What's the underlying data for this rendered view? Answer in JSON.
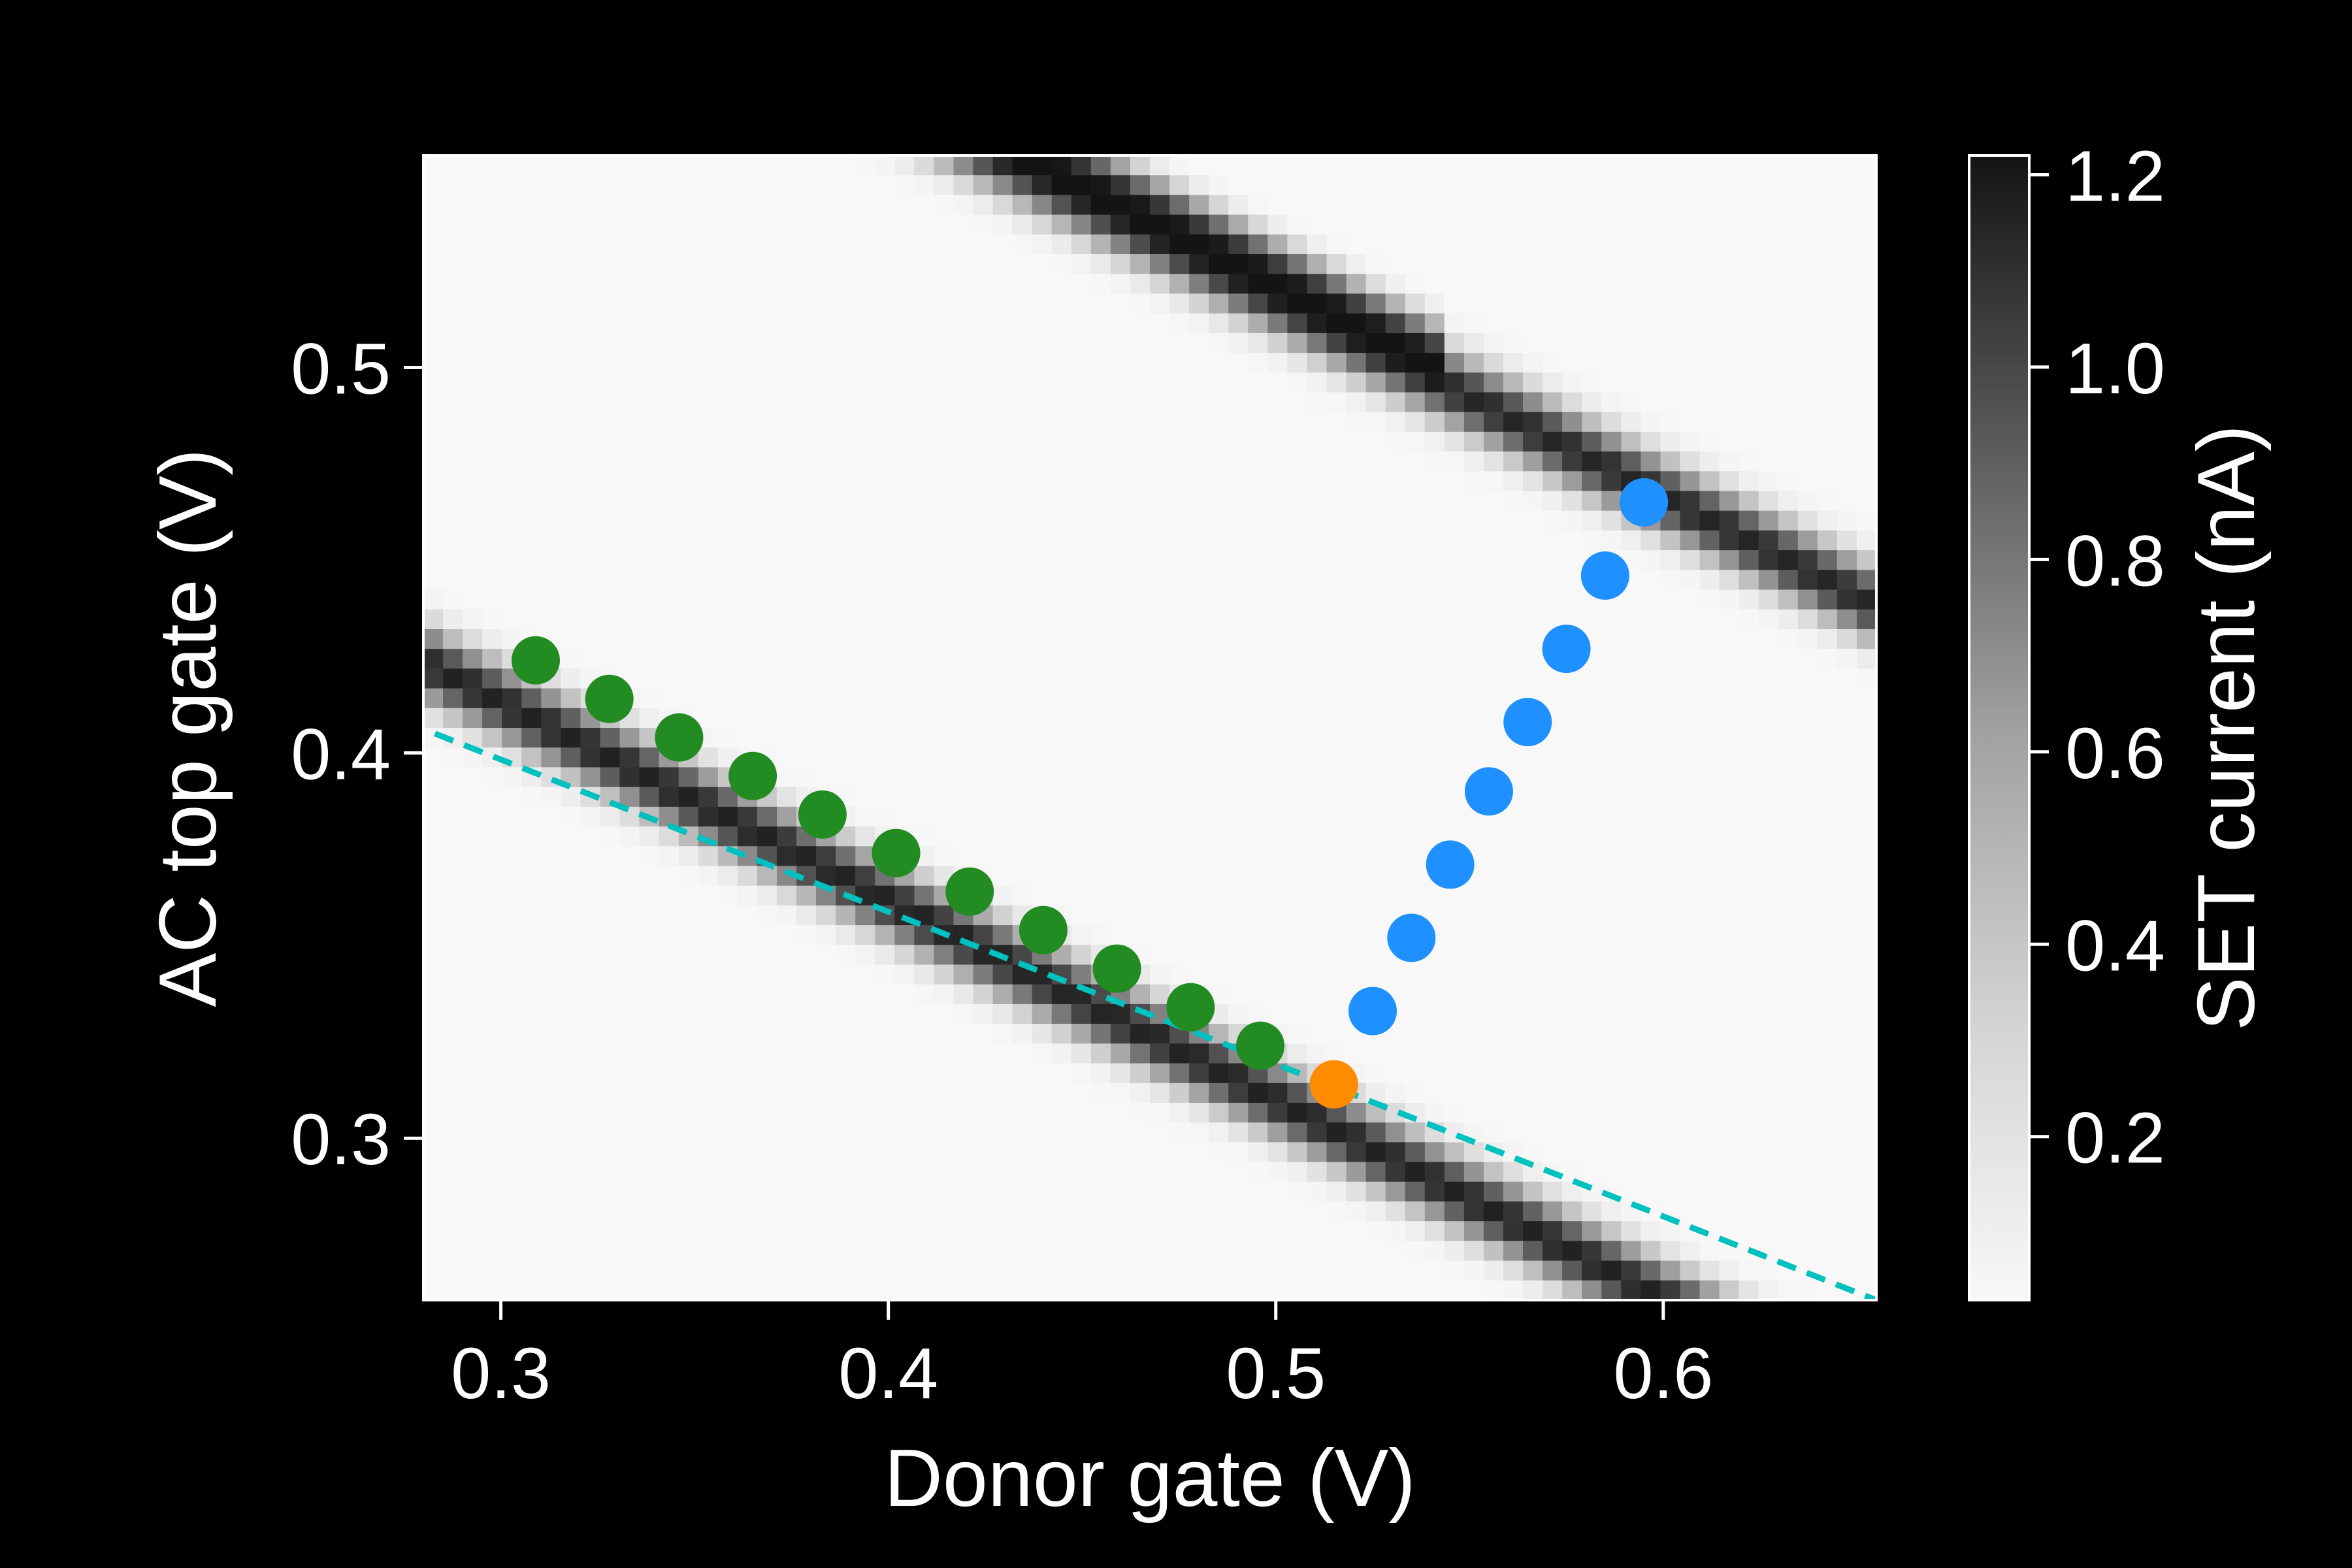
{
  "chart_data": {
    "type": "heatmap",
    "xlabel": "Donor gate (V)",
    "ylabel": "AC top gate (V)",
    "colorbar_label": "SET current (nA)",
    "xlim": [
      0.28,
      0.655
    ],
    "ylim": [
      0.258,
      0.555
    ],
    "xticks": [
      "0.3",
      "0.4",
      "0.5",
      "0.6"
    ],
    "yticks": [
      "0.3",
      "0.4",
      "0.5"
    ],
    "colorbar_range": [
      0.03,
      1.22
    ],
    "colorbar_ticks": [
      "0.2",
      "0.4",
      "0.6",
      "0.8",
      "1.0",
      "1.2"
    ],
    "colormap": "white-to-black",
    "background": "#000000",
    "text_color": "#ffffff",
    "series": [
      {
        "color": "#228b22",
        "x": [
          0.309,
          0.328,
          0.346,
          0.365,
          0.383,
          0.402,
          0.421,
          0.44,
          0.459,
          0.478,
          0.496
        ],
        "y": [
          0.424,
          0.414,
          0.404,
          0.394,
          0.384,
          0.374,
          0.364,
          0.354,
          0.344,
          0.334,
          0.324
        ]
      },
      {
        "color": "#ff8c00",
        "x": [
          0.515
        ],
        "y": [
          0.314
        ]
      },
      {
        "color": "#1e90ff",
        "x": [
          0.525,
          0.535,
          0.545,
          0.555,
          0.565,
          0.575,
          0.585,
          0.595
        ],
        "y": [
          0.333,
          0.352,
          0.371,
          0.39,
          0.408,
          0.427,
          0.446,
          0.465
        ]
      }
    ],
    "guide_line": {
      "color": "#00c0c0",
      "style": "dashed",
      "x": [
        0.283,
        0.655
      ],
      "y": [
        0.405,
        0.258
      ]
    },
    "bands": [
      {
        "intercept_x": 0.3,
        "slope": -0.516,
        "width": 0.0062,
        "amplitude": 1.05
      },
      {
        "intercept_x": 0.568,
        "slope": -0.516,
        "width": 0.0062,
        "amplitude": 1.12
      },
      {
        "intercept_x": 0.776,
        "slope": -0.516,
        "width": 0.0062,
        "amplitude": 1.1
      },
      {
        "intercept_x": 1.008,
        "slope": -0.516,
        "width": 0.0066,
        "amplitude": 1.18
      },
      {
        "intercept_x": 0.785,
        "slope": -0.516,
        "width": 0.0045,
        "amplitude": 0.6,
        "x_range": [
          0.38,
          0.545
        ]
      }
    ]
  }
}
